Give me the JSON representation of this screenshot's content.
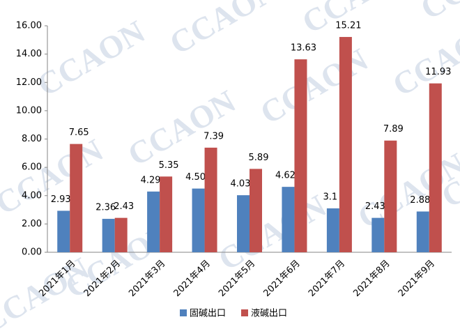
{
  "chart_data": {
    "type": "bar",
    "watermark": "CCAON",
    "categories": [
      "2021年1月",
      "2021年2月",
      "2021年3月",
      "2021年4月",
      "2021年5月",
      "2021年6月",
      "2021年7月",
      "2021年8月",
      "2021年9月"
    ],
    "series": [
      {
        "name": "固碱出口",
        "color": "#4f81bd",
        "values": [
          2.93,
          2.36,
          4.29,
          4.5,
          4.03,
          4.62,
          3.1,
          2.43,
          2.88
        ],
        "value_labels": [
          "2.93",
          "2.36",
          "4.29",
          "4.50",
          "4.03",
          "4.62",
          "3.1",
          "2.43",
          "2.88"
        ]
      },
      {
        "name": "液碱出口",
        "color": "#c0504d",
        "values": [
          7.65,
          2.43,
          5.35,
          7.39,
          5.89,
          13.63,
          15.21,
          7.89,
          11.93
        ],
        "value_labels": [
          "7.65",
          "2.43",
          "5.35",
          "7.39",
          "5.89",
          "13.63",
          "15.21",
          "7.89",
          "11.93"
        ]
      }
    ],
    "ylim": [
      0,
      16
    ],
    "yticks": [
      {
        "value": 0,
        "label": "0.00"
      },
      {
        "value": 2,
        "label": "2.00"
      },
      {
        "value": 4,
        "label": "4.00"
      },
      {
        "value": 6,
        "label": "6.00"
      },
      {
        "value": 8,
        "label": "8.00"
      },
      {
        "value": 10,
        "label": "10.00"
      },
      {
        "value": 12,
        "label": "12.00"
      },
      {
        "value": 14,
        "label": "14.00"
      },
      {
        "value": 16,
        "label": "16.00"
      }
    ],
    "grid": false,
    "legend": "bottom"
  }
}
